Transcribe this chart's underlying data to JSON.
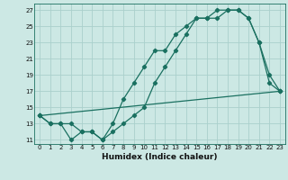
{
  "xlabel": "Humidex (Indice chaleur)",
  "ylabel": "",
  "bg_color": "#cce8e4",
  "grid_color": "#aad0cc",
  "line_color": "#1a7060",
  "xlim": [
    -0.5,
    23.5
  ],
  "ylim": [
    10.5,
    27.8
  ],
  "yticks": [
    11,
    13,
    15,
    17,
    19,
    21,
    23,
    25,
    27
  ],
  "xticks": [
    0,
    1,
    2,
    3,
    4,
    5,
    6,
    7,
    8,
    9,
    10,
    11,
    12,
    13,
    14,
    15,
    16,
    17,
    18,
    19,
    20,
    21,
    22,
    23
  ],
  "line1_x": [
    0,
    1,
    2,
    3,
    4,
    5,
    6,
    7,
    8,
    9,
    10,
    11,
    12,
    13,
    14,
    15,
    16,
    17,
    18,
    19,
    20,
    21,
    22,
    23
  ],
  "line1_y": [
    14,
    13,
    13,
    13,
    12,
    12,
    11,
    12,
    13,
    14,
    15,
    18,
    20,
    22,
    24,
    26,
    26,
    27,
    27,
    27,
    26,
    23,
    19,
    17
  ],
  "line2_x": [
    0,
    1,
    2,
    3,
    4,
    5,
    6,
    7,
    8,
    9,
    10,
    11,
    12,
    13,
    14,
    15,
    16,
    17,
    18,
    19,
    20,
    21,
    22,
    23
  ],
  "line2_y": [
    14,
    13,
    13,
    11,
    12,
    12,
    11,
    13,
    16,
    18,
    20,
    22,
    22,
    24,
    25,
    26,
    26,
    26,
    27,
    27,
    26,
    23,
    18,
    17
  ],
  "line3_x": [
    0,
    23
  ],
  "line3_y": [
    14,
    17
  ]
}
